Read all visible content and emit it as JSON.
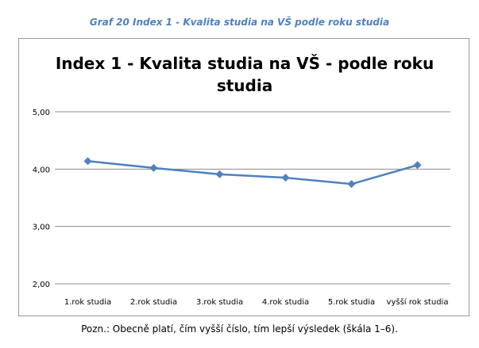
{
  "caption": "Graf 20 Index 1 - Kvalita studia na VŠ podle roku studia",
  "note": "Pozn.: Obecně platí, čím vyšší číslo, tím lepší výsledek (škála 1–6).",
  "chart_data": {
    "type": "line",
    "title_lines": [
      "Index  1 - Kvalita studia na VŠ - podle roku",
      "studia"
    ],
    "categories": [
      "1.rok studia",
      "2.rok studia",
      "3.rok studia",
      "4.rok studia",
      "5.rok studia",
      "vyšší rok studia"
    ],
    "series": [
      {
        "values": [
          4.14,
          4.02,
          3.91,
          3.85,
          3.74,
          4.07
        ]
      }
    ],
    "ylim": [
      2.0,
      5.0
    ],
    "yticks": [
      "2,00",
      "3,00",
      "4,00",
      "5,00"
    ],
    "ytick_values": [
      2.0,
      3.0,
      4.0,
      5.0
    ],
    "grid": true,
    "legend": "none",
    "colors": {
      "line": "#4f81bd",
      "grid": "#8c8c8c"
    }
  }
}
